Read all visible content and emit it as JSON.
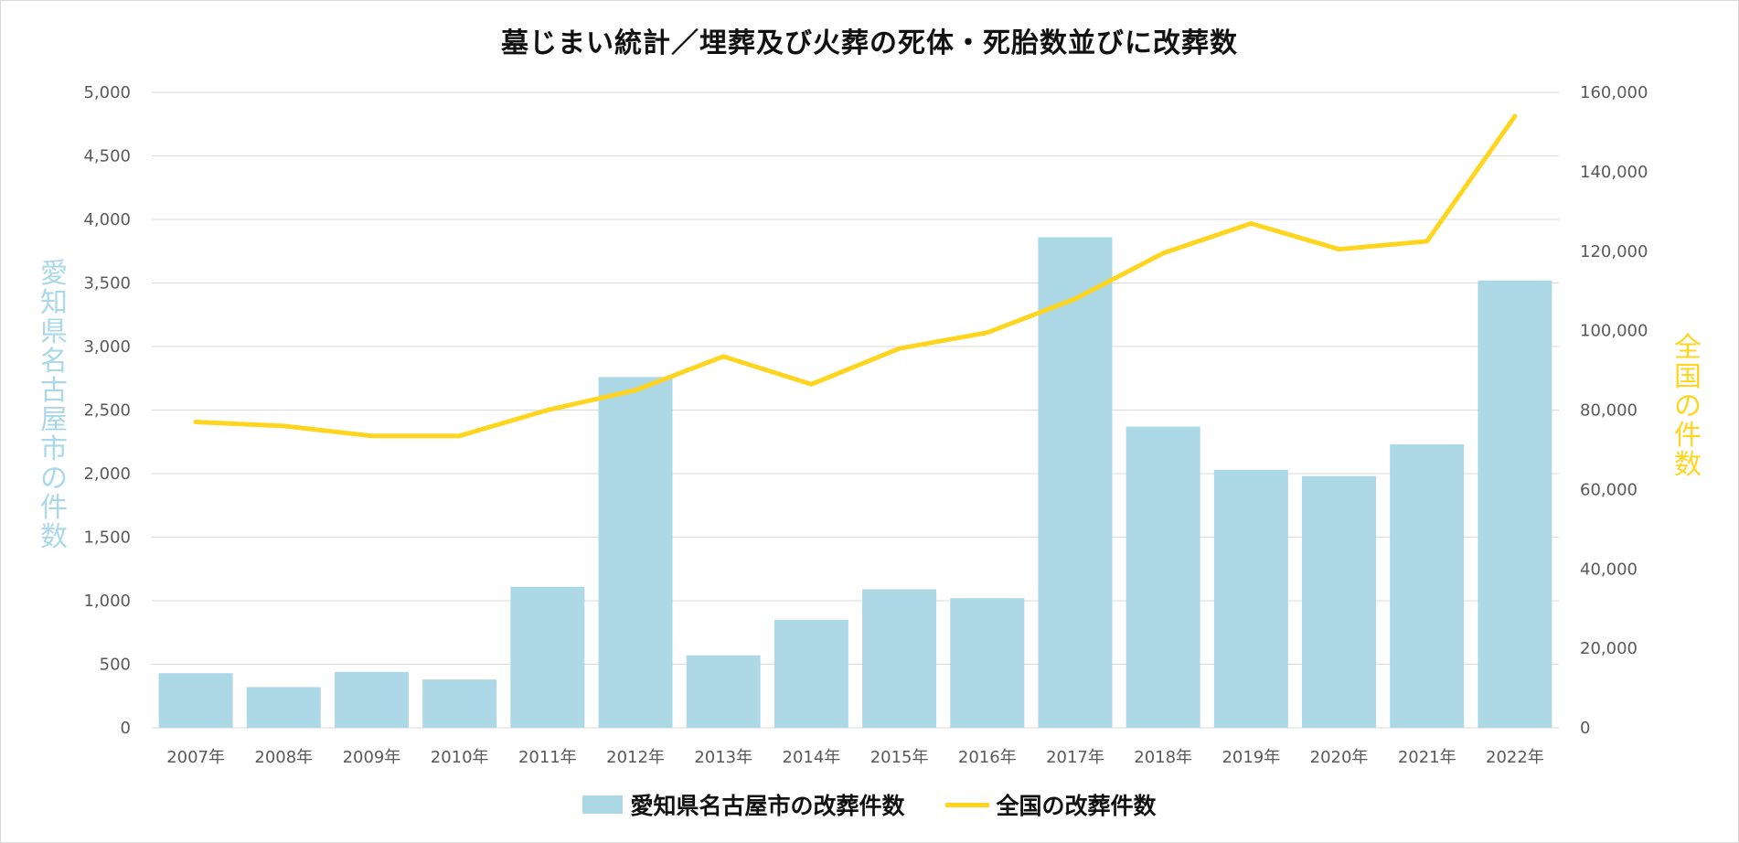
{
  "chart_data": {
    "type": "bar",
    "title": "墓じまい統計／埋葬及び火葬の死体・死胎数並びに改葬数",
    "categories": [
      "2007年",
      "2008年",
      "2009年",
      "2010年",
      "2011年",
      "2012年",
      "2013年",
      "2014年",
      "2015年",
      "2016年",
      "2017年",
      "2018年",
      "2019年",
      "2020年",
      "2021年",
      "2022年"
    ],
    "series": [
      {
        "name": "愛知県名古屋市の改葬件数",
        "type": "bar",
        "axis": "left",
        "color": "#add8e6",
        "values": [
          430,
          320,
          440,
          380,
          1110,
          2760,
          570,
          850,
          1090,
          1020,
          3860,
          2370,
          2030,
          1980,
          2230,
          3520
        ]
      },
      {
        "name": "全国の改葬件数",
        "type": "line",
        "axis": "right",
        "color": "#ffd51f",
        "values": [
          77000,
          76000,
          73500,
          73500,
          80000,
          85000,
          93500,
          86500,
          95500,
          99500,
          108000,
          119500,
          127000,
          120500,
          122500,
          154000
        ]
      }
    ],
    "y_left": {
      "label": "愛知県名古屋市の件数",
      "label_color": "#a9d8e8",
      "ylim": [
        0,
        5000
      ],
      "ticks": [
        0,
        500,
        1000,
        1500,
        2000,
        2500,
        3000,
        3500,
        4000,
        4500,
        5000
      ],
      "tick_labels": [
        "0",
        "500",
        "1,000",
        "1,500",
        "2,000",
        "2,500",
        "3,000",
        "3,500",
        "4,000",
        "4,500",
        "5,000"
      ]
    },
    "y_right": {
      "label": "全国の件数",
      "label_color": "#ffd51f",
      "ylim": [
        0,
        160000
      ],
      "ticks": [
        0,
        20000,
        40000,
        60000,
        80000,
        100000,
        120000,
        140000,
        160000
      ],
      "tick_labels": [
        "0",
        "20,000",
        "40,000",
        "60,000",
        "80,000",
        "100,000",
        "120,000",
        "140,000",
        "160,000"
      ]
    },
    "grid": true,
    "legend_position": "bottom",
    "gridline_color": "#d9d9d9"
  }
}
